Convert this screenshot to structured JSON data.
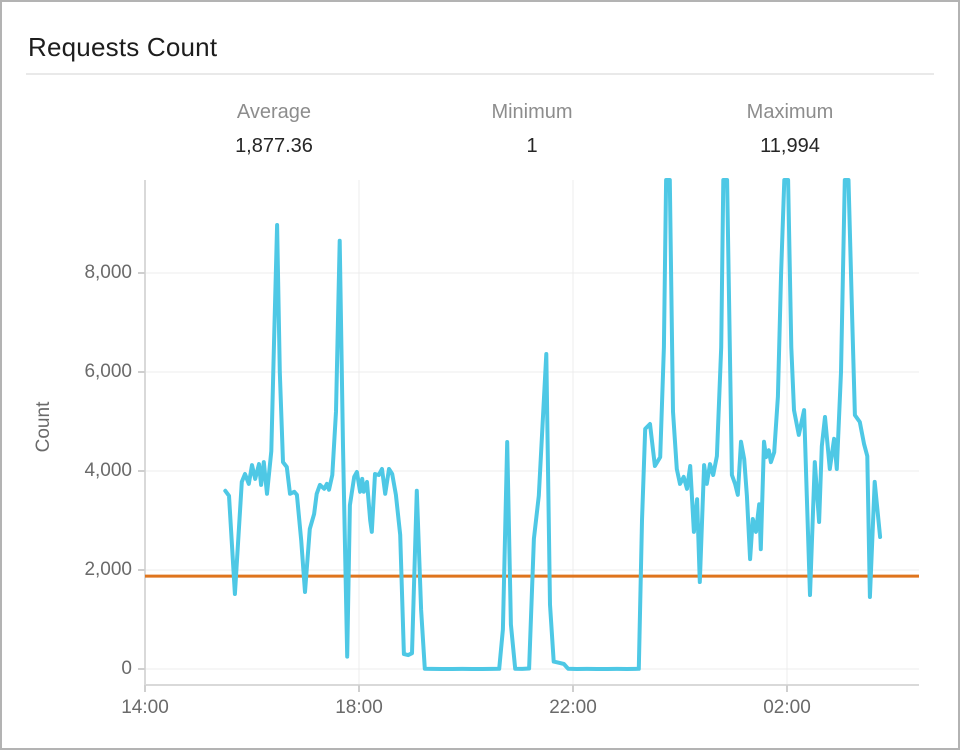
{
  "panel": {
    "title": "Requests Count"
  },
  "stats": [
    {
      "label": "Average",
      "value": "1,877.36"
    },
    {
      "label": "Minimum",
      "value": "1"
    },
    {
      "label": "Maximum",
      "value": "11,994"
    }
  ],
  "chart_data": {
    "type": "line",
    "title": "Requests Count",
    "xlabel": "",
    "ylabel": "Count",
    "x_unit": "hours_after_14:00",
    "x_ticks": [
      {
        "h": 0,
        "label": "14:00"
      },
      {
        "h": 4,
        "label": "18:00"
      },
      {
        "h": 8,
        "label": "22:00"
      },
      {
        "h": 12,
        "label": "02:00"
      }
    ],
    "y_ticks": [
      {
        "v": 0,
        "label": "0"
      },
      {
        "v": 2000,
        "label": "2,000"
      },
      {
        "v": 4000,
        "label": "4,000"
      },
      {
        "v": 6000,
        "label": "6,000"
      },
      {
        "v": 8000,
        "label": "8,000"
      }
    ],
    "ylim": [
      -320,
      9880
    ],
    "grid": true,
    "legend_position": "none",
    "average": 1877.36,
    "minimum": 1,
    "maximum": 11994,
    "line_color": "#4EC8E5",
    "average_line_color": "#DF751D",
    "grid_color": "#ececec",
    "axis_color": "#d9d9d9",
    "tick_color": "#cfcfcf",
    "series": [
      {
        "name": "Requests Count",
        "points": [
          [
            1.5,
            3600
          ],
          [
            1.57,
            3500
          ],
          [
            1.68,
            1515
          ],
          [
            1.81,
            3780
          ],
          [
            1.87,
            3940
          ],
          [
            1.94,
            3740
          ],
          [
            2.0,
            4120
          ],
          [
            2.06,
            3840
          ],
          [
            2.13,
            4140
          ],
          [
            2.17,
            3720
          ],
          [
            2.22,
            4180
          ],
          [
            2.28,
            3540
          ],
          [
            2.36,
            4400
          ],
          [
            2.41,
            6500
          ],
          [
            2.47,
            8970
          ],
          [
            2.52,
            6000
          ],
          [
            2.58,
            4180
          ],
          [
            2.65,
            4080
          ],
          [
            2.71,
            3540
          ],
          [
            2.79,
            3580
          ],
          [
            2.84,
            3520
          ],
          [
            2.92,
            2600
          ],
          [
            2.99,
            1556
          ],
          [
            3.08,
            2830
          ],
          [
            3.16,
            3130
          ],
          [
            3.21,
            3540
          ],
          [
            3.27,
            3720
          ],
          [
            3.35,
            3640
          ],
          [
            3.4,
            3740
          ],
          [
            3.44,
            3620
          ],
          [
            3.5,
            3920
          ],
          [
            3.57,
            5200
          ],
          [
            3.64,
            8650
          ],
          [
            3.7,
            4500
          ],
          [
            3.78,
            250
          ],
          [
            3.83,
            3310
          ],
          [
            3.91,
            3880
          ],
          [
            3.96,
            3980
          ],
          [
            4.02,
            3580
          ],
          [
            4.06,
            3840
          ],
          [
            4.09,
            3580
          ],
          [
            4.15,
            3780
          ],
          [
            4.21,
            3000
          ],
          [
            4.24,
            2770
          ],
          [
            4.3,
            3940
          ],
          [
            4.37,
            3920
          ],
          [
            4.43,
            4040
          ],
          [
            4.49,
            3540
          ],
          [
            4.56,
            4040
          ],
          [
            4.62,
            3940
          ],
          [
            4.69,
            3520
          ],
          [
            4.77,
            2710
          ],
          [
            4.84,
            300
          ],
          [
            4.92,
            280
          ],
          [
            4.99,
            320
          ],
          [
            5.08,
            3600
          ],
          [
            5.16,
            1200
          ],
          [
            5.23,
            5
          ],
          [
            5.36,
            2
          ],
          [
            5.55,
            1
          ],
          [
            5.74,
            1
          ],
          [
            5.93,
            2
          ],
          [
            6.11,
            1
          ],
          [
            6.3,
            1
          ],
          [
            6.49,
            2
          ],
          [
            6.62,
            5
          ],
          [
            6.69,
            800
          ],
          [
            6.77,
            4586
          ],
          [
            6.84,
            900
          ],
          [
            6.92,
            5
          ],
          [
            7.05,
            2
          ],
          [
            7.18,
            10
          ],
          [
            7.27,
            2630
          ],
          [
            7.36,
            3500
          ],
          [
            7.5,
            6364
          ],
          [
            7.57,
            1300
          ],
          [
            7.64,
            150
          ],
          [
            7.76,
            120
          ],
          [
            7.83,
            100
          ],
          [
            7.91,
            5
          ],
          [
            8.07,
            1
          ],
          [
            8.26,
            2
          ],
          [
            8.45,
            1
          ],
          [
            8.64,
            1
          ],
          [
            8.82,
            2
          ],
          [
            9.01,
            1
          ],
          [
            9.16,
            3
          ],
          [
            9.23,
            5
          ],
          [
            9.29,
            3000
          ],
          [
            9.35,
            4850
          ],
          [
            9.44,
            4950
          ],
          [
            9.53,
            4100
          ],
          [
            9.63,
            4280
          ],
          [
            9.7,
            6500
          ],
          [
            9.74,
            11994
          ],
          [
            9.81,
            11994
          ],
          [
            9.87,
            5200
          ],
          [
            9.94,
            4040
          ],
          [
            10.0,
            3740
          ],
          [
            10.07,
            3880
          ],
          [
            10.13,
            3640
          ],
          [
            10.19,
            4100
          ],
          [
            10.26,
            2770
          ],
          [
            10.32,
            3430
          ],
          [
            10.37,
            1758
          ],
          [
            10.45,
            4120
          ],
          [
            10.5,
            3740
          ],
          [
            10.56,
            4140
          ],
          [
            10.62,
            3920
          ],
          [
            10.69,
            4300
          ],
          [
            10.77,
            6500
          ],
          [
            10.81,
            11994
          ],
          [
            10.88,
            11994
          ],
          [
            10.97,
            3920
          ],
          [
            11.03,
            3740
          ],
          [
            11.08,
            3520
          ],
          [
            11.14,
            4590
          ],
          [
            11.2,
            4240
          ],
          [
            11.25,
            3500
          ],
          [
            11.31,
            2220
          ],
          [
            11.36,
            3030
          ],
          [
            11.42,
            2770
          ],
          [
            11.48,
            3330
          ],
          [
            11.51,
            2420
          ],
          [
            11.57,
            4590
          ],
          [
            11.61,
            4280
          ],
          [
            11.66,
            4420
          ],
          [
            11.7,
            4180
          ],
          [
            11.76,
            4380
          ],
          [
            11.83,
            5500
          ],
          [
            11.89,
            8000
          ],
          [
            11.95,
            11994
          ],
          [
            12.02,
            11994
          ],
          [
            12.08,
            6500
          ],
          [
            12.13,
            5230
          ],
          [
            12.22,
            4730
          ],
          [
            12.32,
            5230
          ],
          [
            12.37,
            3500
          ],
          [
            12.43,
            1495
          ],
          [
            12.52,
            4180
          ],
          [
            12.6,
            2970
          ],
          [
            12.65,
            4500
          ],
          [
            12.71,
            5090
          ],
          [
            12.8,
            4040
          ],
          [
            12.88,
            4650
          ],
          [
            12.93,
            4040
          ],
          [
            13.01,
            6000
          ],
          [
            13.08,
            11994
          ],
          [
            13.15,
            11994
          ],
          [
            13.22,
            7000
          ],
          [
            13.27,
            5130
          ],
          [
            13.36,
            4990
          ],
          [
            13.44,
            4550
          ],
          [
            13.5,
            4300
          ],
          [
            13.55,
            1455
          ],
          [
            13.64,
            3780
          ],
          [
            13.74,
            2667
          ]
        ]
      }
    ]
  }
}
